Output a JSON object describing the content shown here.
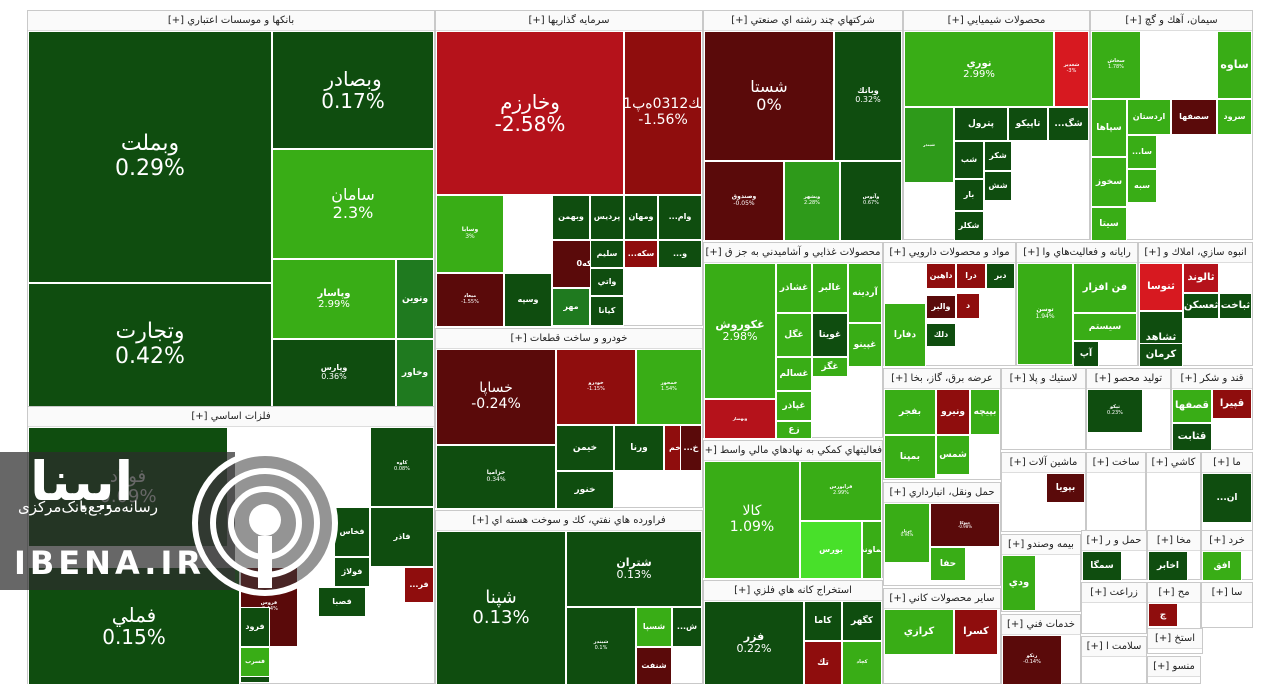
{
  "colors": {
    "dark_green": "#0f4d0f",
    "mid_green": "#1f7a1f",
    "green": "#2e9a1a",
    "light_green": "#39ad16",
    "bright_green": "#48e02a",
    "dark_red": "#5a0a0a",
    "red": "#8f0d0d",
    "bright_red": "#b5121b",
    "vivid_red": "#d71920"
  },
  "logo": {
    "brand_fa": "ایبنا",
    "brand_sub": "رسانه‌مرجع‌بانک‌مرکزی",
    "brand_en": "IBENA.IR",
    "icon": "broadcast-icon"
  },
  "chart_data": {
    "type": "treemap",
    "sectors": [
      {
        "title": "بانکها و موسسات اعتباري [+]",
        "tiles": [
          {
            "name": "وبملت",
            "pct": "0.29%",
            "color": "dark_green"
          },
          {
            "name": "وتجارت",
            "pct": "0.42%",
            "color": "dark_green"
          },
          {
            "name": "وبصادر",
            "pct": "0.17%",
            "color": "dark_green"
          },
          {
            "name": "سامان",
            "pct": "2.3%",
            "color": "light_green"
          },
          {
            "name": "وپاسار",
            "pct": "2.99%",
            "color": "light_green"
          },
          {
            "name": "ونوين",
            "pct": "",
            "color": "mid_green"
          },
          {
            "name": "وپارس",
            "pct": "0.36%",
            "color": "dark_green"
          },
          {
            "name": "وخاور",
            "pct": "",
            "color": "mid_green"
          }
        ]
      },
      {
        "title": "سرمايه گذاريها [+]",
        "tiles": [
          {
            "name": "وخارزم",
            "pct": "-2.58%",
            "color": "bright_red"
          },
          {
            "name": "سك0312ه‌پ01",
            "pct": "-1.56%",
            "color": "red"
          },
          {
            "name": "وسابا",
            "pct": "3%",
            "color": "light_green"
          },
          {
            "name": "وبهمن",
            "pct": "",
            "color": "dark_green"
          },
          {
            "name": "پرديس",
            "pct": "",
            "color": "dark_green"
          },
          {
            "name": "ومهان",
            "pct": "",
            "color": "dark_green"
          },
          {
            "name": "سکه0",
            "pct": "",
            "color": "dark_red"
          },
          {
            "name": "سليم",
            "pct": "",
            "color": "dark_green"
          },
          {
            "name": "سكه...",
            "pct": "",
            "color": "red"
          },
          {
            "name": "واتي",
            "pct": "",
            "color": "dark_green"
          },
          {
            "name": "وسپه",
            "pct": "",
            "color": "dark_green"
          },
          {
            "name": "مهر",
            "pct": "",
            "color": "mid_green"
          },
          {
            "name": "كيانا",
            "pct": "",
            "color": "dark_green"
          },
          {
            "name": "ميعاد",
            "pct": "-1.55%",
            "color": "dark_red"
          },
          {
            "name": "وام...",
            "pct": "",
            "color": "dark_green"
          },
          {
            "name": "و...",
            "pct": "",
            "color": "dark_green"
          }
        ]
      },
      {
        "title": "شركتهاي چند رشته اي صنعتي [+]",
        "tiles": [
          {
            "name": "شستا",
            "pct": "0%",
            "color": "dark_red"
          },
          {
            "name": "وبانك",
            "pct": "0.32%",
            "color": "dark_green"
          },
          {
            "name": "وصندوق",
            "pct": "-0.05%",
            "color": "dark_red"
          },
          {
            "name": "وبشهر",
            "pct": "2.28%",
            "color": "green"
          },
          {
            "name": "وآتوس",
            "pct": "0.67%",
            "color": "dark_green"
          }
        ]
      },
      {
        "title": "محصولات شيميايي [+]",
        "tiles": [
          {
            "name": "نوري",
            "pct": "2.99%",
            "color": "light_green"
          },
          {
            "name": "شغدير",
            "pct": "-3%",
            "color": "vivid_red"
          },
          {
            "name": "پترول",
            "pct": "",
            "color": "dark_green"
          },
          {
            "name": "تاپيكو",
            "pct": "",
            "color": "dark_green"
          },
          {
            "name": "شگ...",
            "pct": "",
            "color": "dark_green"
          },
          {
            "name": "شب",
            "pct": "",
            "color": "dark_green"
          },
          {
            "name": "شكر",
            "pct": "",
            "color": "dark_green"
          },
          {
            "name": "شبندر",
            "pct": "",
            "color": "green"
          },
          {
            "name": "بار",
            "pct": "",
            "color": "dark_green"
          },
          {
            "name": "شكلر",
            "pct": "",
            "color": "dark_green"
          },
          {
            "name": "شش",
            "pct": "",
            "color": "dark_green"
          }
        ]
      },
      {
        "title": "سيمان، آهك و گچ [+]",
        "tiles": [
          {
            "name": "سخاش",
            "pct": "1.78%",
            "color": "light_green"
          },
          {
            "name": "ساوه",
            "pct": "",
            "color": "light_green"
          },
          {
            "name": "سپاها",
            "pct": "",
            "color": "light_green"
          },
          {
            "name": "اردستان",
            "pct": "",
            "color": "light_green"
          },
          {
            "name": "سصفها",
            "pct": "",
            "color": "dark_red"
          },
          {
            "name": "سرود",
            "pct": "",
            "color": "light_green"
          },
          {
            "name": "سخوز",
            "pct": "",
            "color": "light_green"
          },
          {
            "name": "سا...",
            "pct": "",
            "color": "light_green"
          },
          {
            "name": "سيتا",
            "pct": "",
            "color": "light_green"
          },
          {
            "name": "سبه",
            "pct": "",
            "color": "light_green"
          }
        ]
      },
      {
        "title": "فلزات اساسي [+]",
        "tiles": [
          {
            "name": "فولاد",
            "pct": "0.09%",
            "color": "dark_green"
          },
          {
            "name": "فملي",
            "pct": "0.15%",
            "color": "dark_green"
          },
          {
            "name": "كاوه",
            "pct": "0.08%",
            "color": "dark_green"
          },
          {
            "name": "فخاس",
            "pct": "",
            "color": "dark_green"
          },
          {
            "name": "فاذر",
            "pct": "",
            "color": "dark_green"
          },
          {
            "name": "فولاژ",
            "pct": "",
            "color": "dark_green"
          },
          {
            "name": "فصبا",
            "pct": "",
            "color": "dark_green"
          },
          {
            "name": "فروس",
            "pct": "-0.44%",
            "color": "dark_red"
          },
          {
            "name": "فرود",
            "pct": "",
            "color": "dark_green"
          },
          {
            "name": "ارفع",
            "pct": "",
            "color": "dark_green"
          },
          {
            "name": "فر...",
            "pct": "",
            "color": "red"
          },
          {
            "name": "فسرب",
            "pct": "",
            "color": "light_green"
          }
        ]
      },
      {
        "title": "خودرو و ساخت قطعات [+]",
        "tiles": [
          {
            "name": "خساپا",
            "pct": "-0.24%",
            "color": "dark_red"
          },
          {
            "name": "خودرو",
            "pct": "-1.15%",
            "color": "red"
          },
          {
            "name": "خمحور",
            "pct": "1.54%",
            "color": "light_green"
          },
          {
            "name": "خزامیا",
            "pct": "0.34%",
            "color": "dark_green"
          },
          {
            "name": "خيمن",
            "pct": "",
            "color": "dark_green"
          },
          {
            "name": "ورنا",
            "pct": "",
            "color": "dark_green"
          },
          {
            "name": "خم",
            "pct": "",
            "color": "red"
          },
          {
            "name": "خ...",
            "pct": "",
            "color": "dark_red"
          },
          {
            "name": "خنور",
            "pct": "",
            "color": "dark_green"
          }
        ]
      },
      {
        "title": "فراورده هاي نفتي، كك و سوخت هسته اي [+]",
        "tiles": [
          {
            "name": "شپنا",
            "pct": "0.13%",
            "color": "dark_green"
          },
          {
            "name": "شتران",
            "pct": "0.13%",
            "color": "dark_green"
          },
          {
            "name": "شبندر",
            "pct": "0.1%",
            "color": "dark_green"
          },
          {
            "name": "شسپا",
            "pct": "",
            "color": "light_green"
          },
          {
            "name": "ش...",
            "pct": "",
            "color": "dark_green"
          },
          {
            "name": "شنفت",
            "pct": "",
            "color": "dark_red"
          }
        ]
      },
      {
        "title": "محصولات غذايي و آشاميدني به جز ق [+]",
        "tiles": [
          {
            "name": "غكوروش",
            "pct": "2.98%",
            "color": "light_green"
          },
          {
            "name": "غشاذر",
            "pct": "",
            "color": "light_green"
          },
          {
            "name": "غالبر",
            "pct": "",
            "color": "light_green"
          },
          {
            "name": "آردينه",
            "pct": "",
            "color": "light_green"
          },
          {
            "name": "غگل",
            "pct": "",
            "color": "light_green"
          },
          {
            "name": "غويتا",
            "pct": "",
            "color": "dark_green"
          },
          {
            "name": "غپينو",
            "pct": "",
            "color": "light_green"
          },
          {
            "name": "غسالم",
            "pct": "",
            "color": "light_green"
          },
          {
            "name": "غگز",
            "pct": "",
            "color": "light_green"
          },
          {
            "name": "غپاذر",
            "pct": "",
            "color": "light_green"
          },
          {
            "name": "زع",
            "pct": "",
            "color": "light_green"
          },
          {
            "name": "وبهساز",
            "pct": "",
            "color": "bright_red"
          }
        ]
      },
      {
        "title": "مواد و محصولات دارويي [+]",
        "tiles": [
          {
            "name": "داهين",
            "pct": "",
            "color": "red"
          },
          {
            "name": "درا",
            "pct": "",
            "color": "red"
          },
          {
            "name": "دبر",
            "pct": "",
            "color": "dark_green"
          },
          {
            "name": "والبر",
            "pct": "",
            "color": "dark_red"
          },
          {
            "name": "د",
            "pct": "",
            "color": "red"
          },
          {
            "name": "دلك",
            "pct": "",
            "color": "dark_green"
          },
          {
            "name": "دفارا",
            "pct": "",
            "color": "light_green"
          }
        ]
      },
      {
        "title": "رايانه و فعاليت‌هاي وا [+]",
        "tiles": [
          {
            "name": "فن افزار",
            "pct": "",
            "color": "light_green"
          },
          {
            "name": "سيستم",
            "pct": "",
            "color": "light_green"
          },
          {
            "name": "توسن",
            "pct": "1.94%",
            "color": "light_green"
          },
          {
            "name": "آپ",
            "pct": "",
            "color": "dark_green"
          }
        ]
      },
      {
        "title": "انبوه سازي، املاك و [+]",
        "tiles": [
          {
            "name": "ثنوسا",
            "pct": "",
            "color": "vivid_red"
          },
          {
            "name": "ثالوند",
            "pct": "",
            "color": "bright_red"
          },
          {
            "name": "ثشاهد",
            "pct": "",
            "color": "dark_green"
          },
          {
            "name": "ثعسكن",
            "pct": "",
            "color": "dark_green"
          },
          {
            "name": "ثباخت",
            "pct": "",
            "color": "dark_green"
          },
          {
            "name": "كرمان",
            "pct": "",
            "color": "dark_green"
          }
        ]
      },
      {
        "title": "عرضه برق، گاز، بخا [+]",
        "tiles": [
          {
            "name": "بفجر",
            "pct": "",
            "color": "light_green"
          },
          {
            "name": "ونيرو",
            "pct": "",
            "color": "red"
          },
          {
            "name": "بپيچه",
            "pct": "",
            "color": "light_green"
          },
          {
            "name": "شمس",
            "pct": "",
            "color": "light_green"
          },
          {
            "name": "بمپنا",
            "pct": "",
            "color": "light_green"
          }
        ]
      },
      {
        "title": "لاستيك و پلا [+]",
        "tiles": []
      },
      {
        "title": "توليد محصو [+]",
        "tiles": [
          {
            "name": "تپكو",
            "pct": "0.23%",
            "color": "dark_green"
          }
        ]
      },
      {
        "title": "قند و شكر [+]",
        "tiles": [
          {
            "name": "قصفها",
            "pct": "",
            "color": "light_green"
          },
          {
            "name": "قپيرا",
            "pct": "",
            "color": "red"
          },
          {
            "name": "قثابت",
            "pct": "",
            "color": "dark_green"
          }
        ]
      },
      {
        "title": "فعاليتهاي كمكي به نهادهاي مالي واسط [+]",
        "tiles": [
          {
            "name": "كالا",
            "pct": "1.09%",
            "color": "light_green"
          },
          {
            "name": "فرابورس",
            "pct": "2.99%",
            "color": "light_green"
          },
          {
            "name": "بورس",
            "pct": "",
            "color": "bright_green"
          },
          {
            "name": "تماوند",
            "pct": "",
            "color": "light_green"
          }
        ]
      },
      {
        "title": "حمل ونقل، انبارداري [+]",
        "tiles": [
          {
            "name": "حتوكا",
            "pct": "-0.98%",
            "color": "dark_red"
          },
          {
            "name": "حفا",
            "pct": "",
            "color": "light_green"
          },
          {
            "name": "حريل",
            "pct": "0.94%",
            "color": "light_green"
          }
        ]
      },
      {
        "title": "ماشين آلات [+]",
        "tiles": [
          {
            "name": "بپويا",
            "pct": "",
            "color": "dark_red"
          }
        ]
      },
      {
        "title": "ساخت [+]",
        "tiles": []
      },
      {
        "title": "كاشي [+]",
        "tiles": []
      },
      {
        "title": "ما [+]",
        "tiles": [
          {
            "name": "ان...",
            "pct": "",
            "color": "dark_green"
          }
        ]
      },
      {
        "title": "استخراج كانه هاي فلزي [+]",
        "tiles": [
          {
            "name": "فزر",
            "pct": "0.22%",
            "color": "dark_green"
          },
          {
            "name": "كاما",
            "pct": "",
            "color": "dark_green"
          },
          {
            "name": "كگهر",
            "pct": "",
            "color": "dark_green"
          },
          {
            "name": "تك",
            "pct": "",
            "color": "red"
          },
          {
            "name": "کچاد",
            "pct": "",
            "color": "light_green"
          }
        ]
      },
      {
        "title": "ساير محصولات كاني [+]",
        "tiles": [
          {
            "name": "كرازي",
            "pct": "",
            "color": "light_green"
          },
          {
            "name": "كسرا",
            "pct": "",
            "color": "red"
          }
        ]
      },
      {
        "title": "بيمه وصندو [+]",
        "tiles": [
          {
            "name": "ودي",
            "pct": "",
            "color": "light_green"
          }
        ]
      },
      {
        "title": "خدمات فني [+]",
        "tiles": [
          {
            "name": "رتكو",
            "pct": "-0.14%",
            "color": "dark_red"
          }
        ]
      },
      {
        "title": "حمل و ر [+]",
        "tiles": [
          {
            "name": "سمگا",
            "pct": "",
            "color": "dark_green"
          }
        ]
      },
      {
        "title": "مخا [+]",
        "tiles": [
          {
            "name": "اخابر",
            "pct": "",
            "color": "dark_green"
          }
        ]
      },
      {
        "title": "خرد [+]",
        "tiles": [
          {
            "name": "افق",
            "pct": "",
            "color": "light_green"
          }
        ]
      },
      {
        "title": "زراعت [+]",
        "tiles": []
      },
      {
        "title": "سلامت ا [+]",
        "tiles": []
      },
      {
        "title": "منسو [+]",
        "tiles": []
      },
      {
        "title": "مح [+]",
        "tiles": [
          {
            "name": "چ",
            "pct": "",
            "color": "red"
          }
        ]
      },
      {
        "title": "سا [+]",
        "tiles": []
      },
      {
        "title": "استخ [+]",
        "tiles": []
      }
    ]
  }
}
